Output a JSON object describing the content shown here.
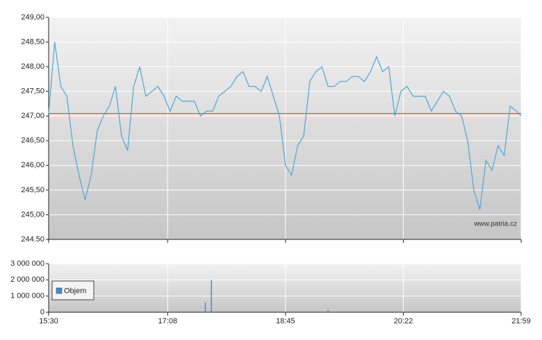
{
  "chart_data": [
    {
      "type": "line",
      "color": "#4ba6d6",
      "x": [
        "15:30",
        "15:35",
        "15:40",
        "15:45",
        "15:50",
        "15:55",
        "16:00",
        "16:05",
        "16:10",
        "16:15",
        "16:20",
        "16:25",
        "16:30",
        "16:35",
        "16:40",
        "16:45",
        "16:50",
        "16:55",
        "17:00",
        "17:05",
        "17:10",
        "17:15",
        "17:20",
        "17:25",
        "17:30",
        "17:35",
        "17:40",
        "17:45",
        "17:50",
        "17:55",
        "18:00",
        "18:05",
        "18:10",
        "18:15",
        "18:20",
        "18:25",
        "18:30",
        "18:35",
        "18:40",
        "18:45",
        "18:50",
        "18:55",
        "19:00",
        "19:05",
        "19:10",
        "19:15",
        "19:20",
        "19:25",
        "19:30",
        "19:35",
        "19:40",
        "19:45",
        "19:50",
        "19:55",
        "20:00",
        "20:05",
        "20:10",
        "20:15",
        "20:20",
        "20:25",
        "20:30",
        "20:35",
        "20:40",
        "20:45",
        "20:50",
        "20:55",
        "21:00",
        "21:05",
        "21:10",
        "21:15",
        "21:20",
        "21:25",
        "21:30",
        "21:35",
        "21:40",
        "21:45",
        "21:50",
        "21:55",
        "21:59"
      ],
      "values": [
        247.05,
        248.5,
        247.6,
        247.4,
        246.4,
        245.8,
        245.3,
        245.8,
        246.7,
        247.0,
        247.2,
        247.6,
        246.6,
        246.3,
        247.6,
        248.0,
        247.4,
        247.5,
        247.6,
        247.4,
        247.1,
        247.4,
        247.3,
        247.3,
        247.3,
        247.0,
        247.1,
        247.1,
        247.4,
        247.5,
        247.6,
        247.8,
        247.9,
        247.6,
        247.6,
        247.5,
        247.8,
        247.4,
        247.0,
        246.0,
        245.8,
        246.4,
        246.6,
        247.7,
        247.9,
        248.0,
        247.6,
        247.6,
        247.7,
        247.7,
        247.8,
        247.8,
        247.7,
        247.9,
        248.2,
        247.9,
        248.0,
        247.0,
        247.5,
        247.6,
        247.4,
        247.4,
        247.4,
        247.1,
        247.3,
        247.5,
        247.4,
        247.1,
        247.0,
        246.5,
        245.5,
        245.1,
        246.1,
        245.9,
        246.4,
        246.2,
        247.2,
        247.1,
        247.0
      ],
      "xlim": [
        "15:30",
        "21:59"
      ],
      "xticks": [
        "15:30",
        "17:08",
        "18:45",
        "20:22",
        "21:59"
      ],
      "ylim": [
        244.5,
        249
      ],
      "yticks": [
        {
          "value": 244.5,
          "label": "244.50"
        },
        {
          "value": 245,
          "label": "245,00"
        },
        {
          "value": 245.5,
          "label": "245,50"
        },
        {
          "value": 246,
          "label": "246,00"
        },
        {
          "value": 246.5,
          "label": "246,50"
        },
        {
          "value": 247,
          "label": "247,00"
        },
        {
          "value": 247.5,
          "label": "247,50"
        },
        {
          "value": 248,
          "label": "248,00"
        },
        {
          "value": 248.5,
          "label": "248,50"
        },
        {
          "value": 249,
          "label": "249,00"
        }
      ],
      "reference_line": {
        "value": 247.05,
        "color": "#e03030"
      },
      "grid": true,
      "watermark": "www.patria.cz"
    },
    {
      "type": "bar",
      "x": [
        "17:39",
        "17:44",
        "19:20"
      ],
      "series": [
        {
          "name": "Objem",
          "color": "#3d8fc8",
          "values": [
            600000,
            2000000,
            150000
          ]
        }
      ],
      "xlim": [
        "15:30",
        "21:59"
      ],
      "xticks": [
        "15:30",
        "17:08",
        "18:45",
        "20:22",
        "21:59"
      ],
      "ylim": [
        0,
        3000000
      ],
      "yticks": [
        0,
        {
          "value": 1000000,
          "label": "1 000 000"
        },
        {
          "value": 2000000,
          "label": "2 000 000"
        },
        {
          "value": 3000000,
          "label": "3 000 000"
        }
      ],
      "grid": true,
      "legend": "bottom-left"
    }
  ]
}
